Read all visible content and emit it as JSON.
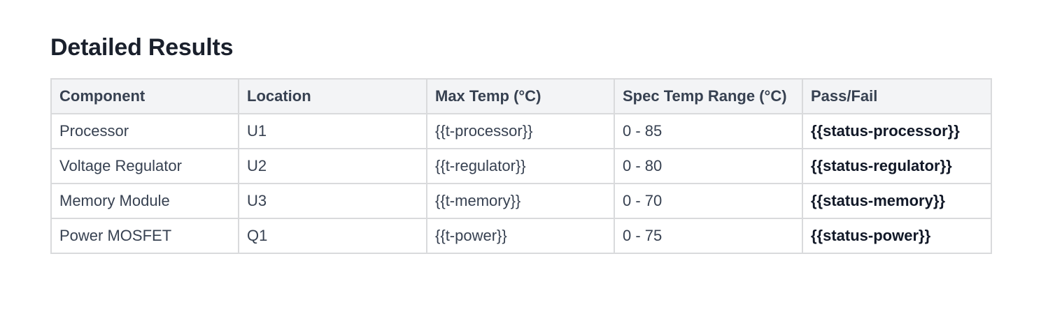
{
  "section": {
    "title": "Detailed Results"
  },
  "table": {
    "headers": [
      "Component",
      "Location",
      "Max Temp (°C)",
      "Spec Temp Range (°C)",
      "Pass/Fail"
    ],
    "rows": [
      [
        "Processor",
        "U1",
        "{{t-processor}}",
        "0 - 85",
        "{{status-processor}}"
      ],
      [
        "Voltage Regulator",
        "U2",
        "{{t-regulator}}",
        "0 - 80",
        "{{status-regulator}}"
      ],
      [
        "Memory Module",
        "U3",
        "{{t-memory}}",
        "0 - 70",
        "{{status-memory}}"
      ],
      [
        "Power MOSFET",
        "Q1",
        "{{t-power}}",
        "0 - 75",
        "{{status-power}}"
      ]
    ]
  }
}
